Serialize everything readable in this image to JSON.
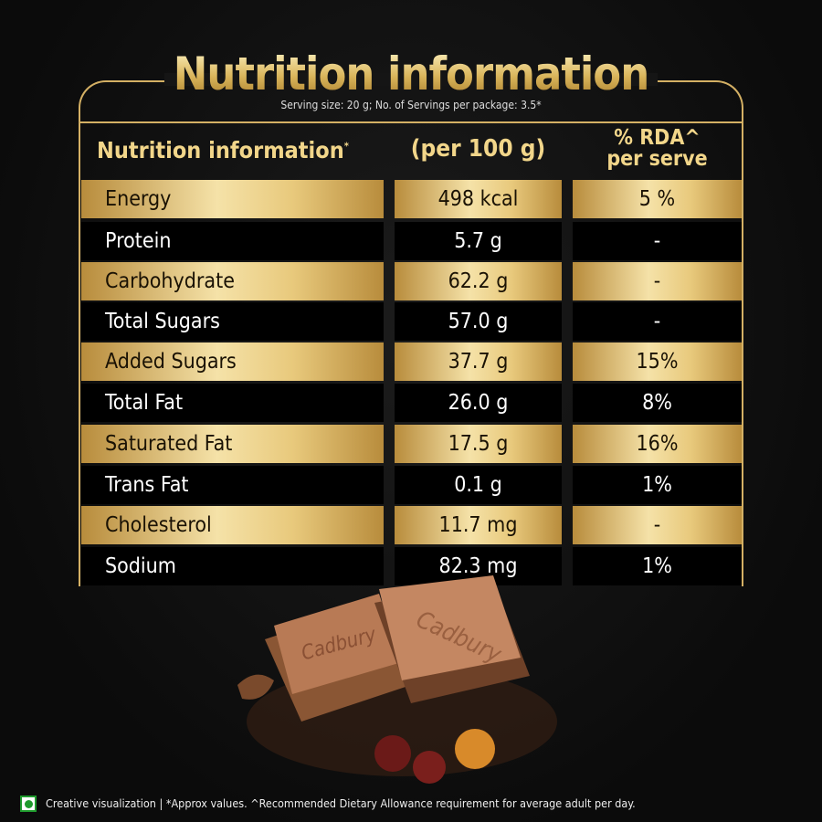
{
  "title": "Nutrition information",
  "serving": "Serving size: 20 g; No. of Servings per package: 3.5*",
  "headers": {
    "col1": "Nutrition information",
    "col1_mark": "*",
    "col2": "(per 100 g)",
    "col3_line1": "% RDA^",
    "col3_line2": "per serve"
  },
  "rows": [
    {
      "name": "Energy",
      "per100": "498 kcal",
      "rda": "5 %"
    },
    {
      "name": "Protein",
      "per100": "5.7 g",
      "rda": "-"
    },
    {
      "name": "Carbohydrate",
      "per100": "62.2 g",
      "rda": "-"
    },
    {
      "name": "Total Sugars",
      "per100": "57.0 g",
      "rda": "-"
    },
    {
      "name": "Added Sugars",
      "per100": "37.7 g",
      "rda": "15%"
    },
    {
      "name": "Total Fat",
      "per100": "26.0 g",
      "rda": "8%"
    },
    {
      "name": "Saturated Fat",
      "per100": "17.5 g",
      "rda": "16%"
    },
    {
      "name": "Trans Fat",
      "per100": "0.1 g",
      "rda": "1%"
    },
    {
      "name": "Cholesterol",
      "per100": "11.7 mg",
      "rda": "-"
    },
    {
      "name": "Sodium",
      "per100": "82.3 mg",
      "rda": "1%"
    }
  ],
  "brand": "Cadbury",
  "footer": "Creative visualization | *Approx values. ^Recommended Dietary Allowance requirement for average adult per day.",
  "colors": {
    "gold": "#d4b064",
    "veg": "#1f9a2d"
  }
}
